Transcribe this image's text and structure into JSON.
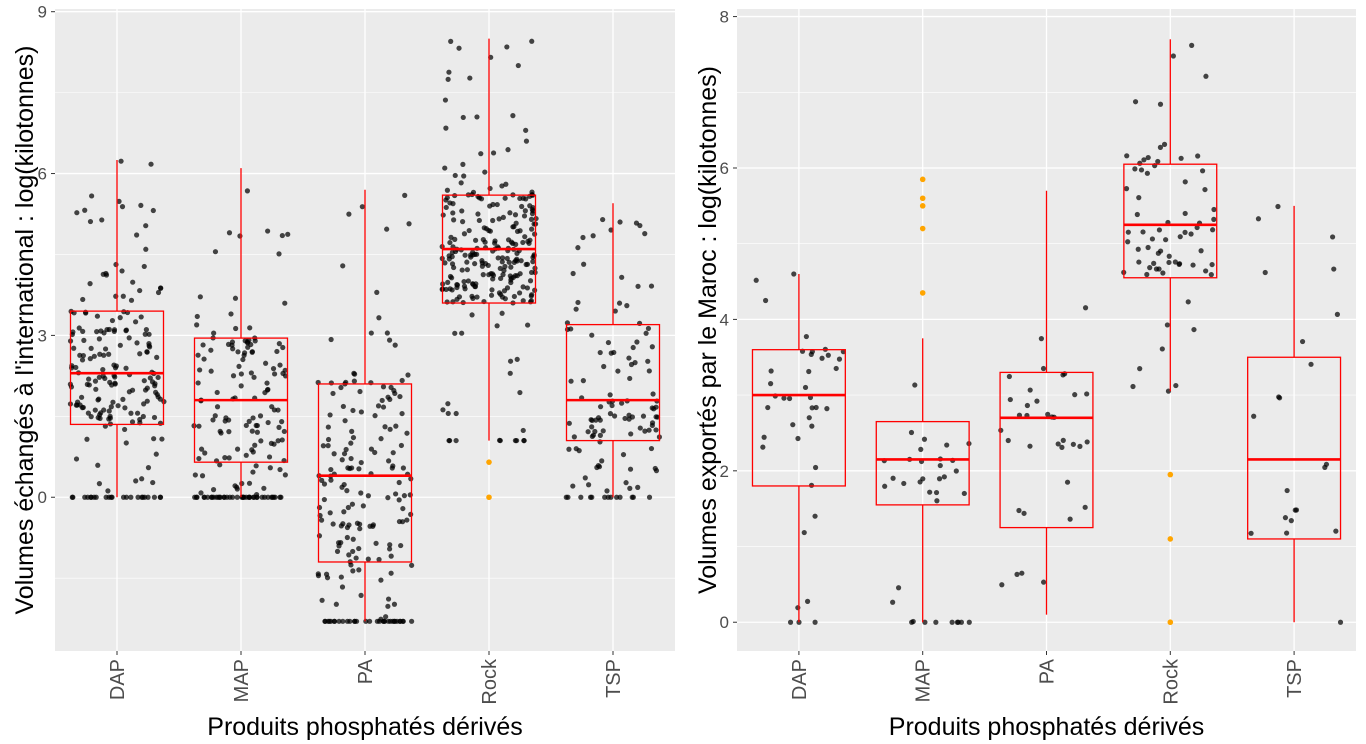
{
  "chart_data": [
    {
      "type": "boxplot",
      "xlabel": "Produits phosphatés dérivés",
      "ylabel": "Volumes échangés à l'international : log(kilotonnes)",
      "categories": [
        "DAP",
        "MAP",
        "PA",
        "Rock",
        "TSP"
      ],
      "ylim": [
        -2.85,
        9.05
      ],
      "yticks": [
        0,
        3,
        6,
        9
      ],
      "grid": true,
      "box_color": "#ff0000",
      "point_color": "#000000",
      "outlier_color": "#ffa500",
      "boxes": [
        {
          "category": "DAP",
          "min": 0,
          "q1": 1.35,
          "median": 2.3,
          "q3": 3.45,
          "max": 6.25
        },
        {
          "category": "MAP",
          "min": 0,
          "q1": 0.65,
          "median": 1.8,
          "q3": 2.95,
          "max": 6.1
        },
        {
          "category": "PA",
          "min": -2.3,
          "q1": -1.2,
          "median": 0.4,
          "q3": 2.1,
          "max": 5.7
        },
        {
          "category": "Rock",
          "min": 1.05,
          "q1": 3.6,
          "median": 4.6,
          "q3": 5.6,
          "max": 8.5
        },
        {
          "category": "TSP",
          "min": 0,
          "q1": 1.05,
          "median": 1.8,
          "q3": 3.2,
          "max": 5.45
        }
      ],
      "outliers": [
        {
          "category": "Rock",
          "values": [
            0.65,
            0
          ]
        }
      ]
    },
    {
      "type": "boxplot",
      "xlabel": "Produits phosphatés dérivés",
      "ylabel": "Volumes exportés par le Maroc : log(kilotonnes)",
      "categories": [
        "DAP",
        "MAP",
        "PA",
        "Rock",
        "TSP"
      ],
      "ylim": [
        -0.38,
        8.1
      ],
      "yticks": [
        0,
        2,
        4,
        6,
        8
      ],
      "grid": true,
      "box_color": "#ff0000",
      "point_color": "#000000",
      "outlier_color": "#ffa500",
      "boxes": [
        {
          "category": "DAP",
          "min": 0,
          "q1": 1.8,
          "median": 3.0,
          "q3": 3.6,
          "max": 4.6
        },
        {
          "category": "MAP",
          "min": 0,
          "q1": 1.55,
          "median": 2.15,
          "q3": 2.65,
          "max": 3.75
        },
        {
          "category": "PA",
          "min": 0.1,
          "q1": 1.25,
          "median": 2.7,
          "q3": 3.3,
          "max": 5.7
        },
        {
          "category": "Rock",
          "min": 3.05,
          "q1": 4.55,
          "median": 5.25,
          "q3": 6.05,
          "max": 7.7
        },
        {
          "category": "TSP",
          "min": 0,
          "q1": 1.1,
          "median": 2.15,
          "q3": 3.5,
          "max": 5.5
        }
      ],
      "outliers": [
        {
          "category": "MAP",
          "values": [
            5.85,
            5.6,
            5.5,
            5.2,
            4.35
          ]
        },
        {
          "category": "Rock",
          "values": [
            1.95,
            1.1,
            0
          ]
        }
      ]
    }
  ]
}
